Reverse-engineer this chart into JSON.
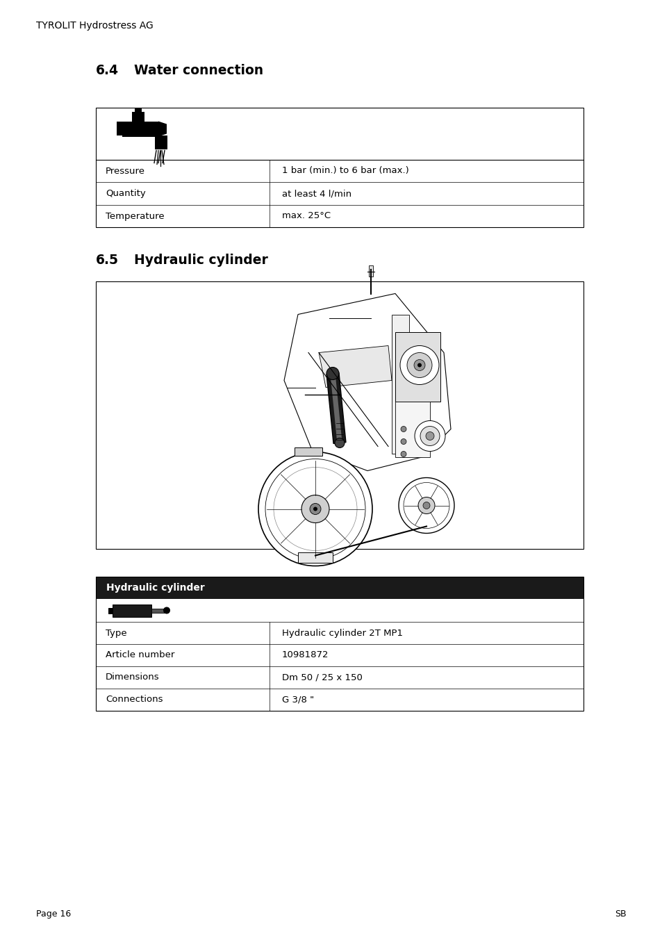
{
  "header_text": "TYROLIT Hydrostress AG",
  "section_64_title": "6.4",
  "section_64_sub": "Water connection",
  "section_65_title": "6.5",
  "section_65_sub": "Hydraulic cylinder",
  "water_table_rows": [
    [
      "Pressure",
      "1 bar (min.) to 6 bar (max.)"
    ],
    [
      "Quantity",
      "at least 4 l/min"
    ],
    [
      "Temperature",
      "max. 25°C"
    ]
  ],
  "hyd_header": "Hydraulic cylinder",
  "hyd_table_rows": [
    [
      "Type",
      "Hydraulic cylinder 2T MP1"
    ],
    [
      "Article number",
      "10981872"
    ],
    [
      "Dimensions",
      "Dm 50 / 25 x 150"
    ],
    [
      "Connections",
      "G 3/8 \""
    ]
  ],
  "footer_left": "Page 16",
  "footer_right": "SB",
  "bg_color": "#ffffff",
  "text_color": "#000000",
  "header_bg": "#1a1a1a",
  "header_text_color": "#ffffff",
  "border_color": "#000000"
}
